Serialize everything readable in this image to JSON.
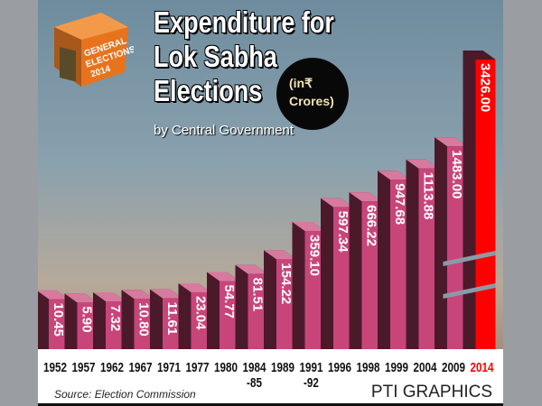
{
  "logo_text": [
    "GENERAL",
    "ELECTIONS",
    "2014"
  ],
  "title_lines": [
    "Expenditure for",
    "Lok Sabha",
    "Elections"
  ],
  "subtitle": "by Central Government",
  "unit_lines": [
    "(in₹",
    "Crores)"
  ],
  "source": "Source: Election Commission",
  "credit": "PTI GRAPHICS",
  "colors": {
    "bar": "#c8457a",
    "bar_side": "#4a1a2a",
    "bar_top": "#d77a9e",
    "highlight": "#ff0000"
  },
  "chart_data": {
    "type": "bar",
    "title": "Expenditure for Lok Sabha Elections by Central Government",
    "ylabel": "in ₹ Crores",
    "categories": [
      "1952",
      "1957",
      "1962",
      "1967",
      "1971",
      "1977",
      "1980",
      "1984\n-85",
      "1989",
      "1991\n-92",
      "1996",
      "1998",
      "1999",
      "2004",
      "2009",
      "2014"
    ],
    "values": [
      10.45,
      5.9,
      7.32,
      10.8,
      11.61,
      23.04,
      54.77,
      81.51,
      154.22,
      359.1,
      597.34,
      666.22,
      947.68,
      1113.88,
      1483.0,
      3426.0
    ],
    "labels": [
      "10.45",
      "5.90",
      "7.32",
      "10.80",
      "11.61",
      "23.04",
      "54.77",
      "81.51",
      "154.22",
      "359.10",
      "597.34",
      "666.22",
      "947.68",
      "1113.88",
      "1483.00",
      "3426.00"
    ],
    "highlight_index": 15,
    "axis_broken_for_highlight": true
  }
}
